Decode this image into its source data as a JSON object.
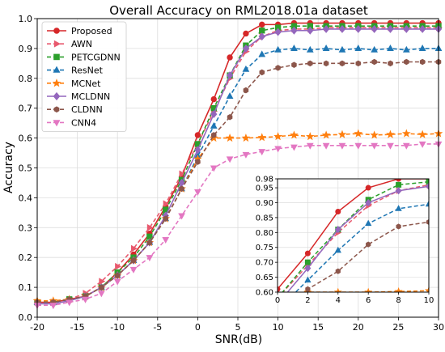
{
  "chart_data": {
    "type": "line",
    "title": "Overall Accuracy on RML2018.01a dataset",
    "xlabel": "SNR(dB)",
    "ylabel": "Accuracy",
    "xlim": [
      -20,
      30
    ],
    "ylim": [
      0,
      1.0
    ],
    "xticks": [
      "-20",
      "-15",
      "-10",
      "-5",
      "0",
      "5",
      "10",
      "15",
      "20",
      "25",
      "30"
    ],
    "yticks": [
      "0.0",
      "0.1",
      "0.2",
      "0.3",
      "0.4",
      "0.5",
      "0.6",
      "0.7",
      "0.8",
      "0.9",
      "1.0"
    ],
    "grid": true,
    "legend_position": "top-left",
    "x": [
      -20,
      -18,
      -16,
      -14,
      -12,
      -10,
      -8,
      -6,
      -4,
      -2,
      0,
      2,
      4,
      6,
      8,
      10,
      12,
      14,
      16,
      18,
      20,
      22,
      24,
      26,
      28,
      30
    ],
    "series": [
      {
        "name": "Proposed",
        "color": "#d62728",
        "marker": "circle",
        "dash": "solid",
        "values": [
          0.05,
          0.05,
          0.06,
          0.07,
          0.1,
          0.15,
          0.21,
          0.28,
          0.37,
          0.47,
          0.61,
          0.73,
          0.87,
          0.95,
          0.98,
          0.98,
          0.985,
          0.985,
          0.985,
          0.985,
          0.985,
          0.985,
          0.985,
          0.985,
          0.985,
          0.985
        ]
      },
      {
        "name": "AWN",
        "color": "#e8596e",
        "marker": "triangle-right",
        "dash": "dashed",
        "values": [
          0.05,
          0.05,
          0.06,
          0.08,
          0.12,
          0.17,
          0.23,
          0.3,
          0.38,
          0.48,
          0.58,
          0.69,
          0.8,
          0.89,
          0.94,
          0.96,
          0.965,
          0.965,
          0.97,
          0.97,
          0.97,
          0.97,
          0.97,
          0.97,
          0.97,
          0.97
        ]
      },
      {
        "name": "PETCGDNN",
        "color": "#2ca02c",
        "marker": "square",
        "dash": "dashed",
        "values": [
          0.05,
          0.05,
          0.06,
          0.07,
          0.1,
          0.15,
          0.2,
          0.27,
          0.36,
          0.46,
          0.58,
          0.7,
          0.81,
          0.91,
          0.96,
          0.97,
          0.975,
          0.975,
          0.975,
          0.975,
          0.975,
          0.975,
          0.975,
          0.975,
          0.975,
          0.975
        ]
      },
      {
        "name": "ResNet",
        "color": "#1f77b4",
        "marker": "triangle-up",
        "dash": "dashed",
        "values": [
          0.05,
          0.05,
          0.06,
          0.07,
          0.1,
          0.14,
          0.19,
          0.25,
          0.33,
          0.43,
          0.54,
          0.64,
          0.74,
          0.83,
          0.88,
          0.895,
          0.9,
          0.895,
          0.9,
          0.895,
          0.9,
          0.895,
          0.9,
          0.895,
          0.9,
          0.9
        ]
      },
      {
        "name": "MCNet",
        "color": "#ff7f0e",
        "marker": "star",
        "dash": "dashed",
        "values": [
          0.055,
          0.055,
          0.06,
          0.07,
          0.1,
          0.14,
          0.19,
          0.25,
          0.33,
          0.43,
          0.53,
          0.6,
          0.6,
          0.6,
          0.602,
          0.605,
          0.61,
          0.605,
          0.61,
          0.612,
          0.615,
          0.61,
          0.612,
          0.615,
          0.612,
          0.615
        ]
      },
      {
        "name": "MCLDNN",
        "color": "#9467bd",
        "marker": "diamond",
        "dash": "solid",
        "values": [
          0.045,
          0.045,
          0.055,
          0.07,
          0.1,
          0.14,
          0.19,
          0.25,
          0.34,
          0.45,
          0.56,
          0.68,
          0.81,
          0.9,
          0.94,
          0.955,
          0.96,
          0.96,
          0.965,
          0.965,
          0.965,
          0.965,
          0.965,
          0.965,
          0.965,
          0.965
        ]
      },
      {
        "name": "CLDNN",
        "color": "#8c564b",
        "marker": "hexagon",
        "dash": "dashed",
        "values": [
          0.05,
          0.05,
          0.06,
          0.07,
          0.1,
          0.14,
          0.19,
          0.25,
          0.33,
          0.43,
          0.52,
          0.61,
          0.67,
          0.76,
          0.82,
          0.835,
          0.845,
          0.85,
          0.85,
          0.85,
          0.85,
          0.855,
          0.85,
          0.855,
          0.855,
          0.855
        ]
      },
      {
        "name": "CNN4",
        "color": "#e377c2",
        "marker": "triangle-down",
        "dash": "dashed",
        "values": [
          0.04,
          0.04,
          0.05,
          0.06,
          0.08,
          0.12,
          0.16,
          0.2,
          0.26,
          0.34,
          0.42,
          0.5,
          0.53,
          0.545,
          0.555,
          0.565,
          0.57,
          0.575,
          0.575,
          0.575,
          0.575,
          0.575,
          0.575,
          0.575,
          0.58,
          0.58
        ]
      }
    ],
    "inset": {
      "xlim": [
        0,
        10
      ],
      "ylim": [
        0.6,
        0.98
      ],
      "xticks": [
        "0",
        "2",
        "4",
        "6",
        "8",
        "10"
      ],
      "yticks": [
        "0.60",
        "0.65",
        "0.70",
        "0.75",
        "0.80",
        "0.85",
        "0.90",
        "0.95",
        "0.98"
      ],
      "grid": true
    }
  }
}
